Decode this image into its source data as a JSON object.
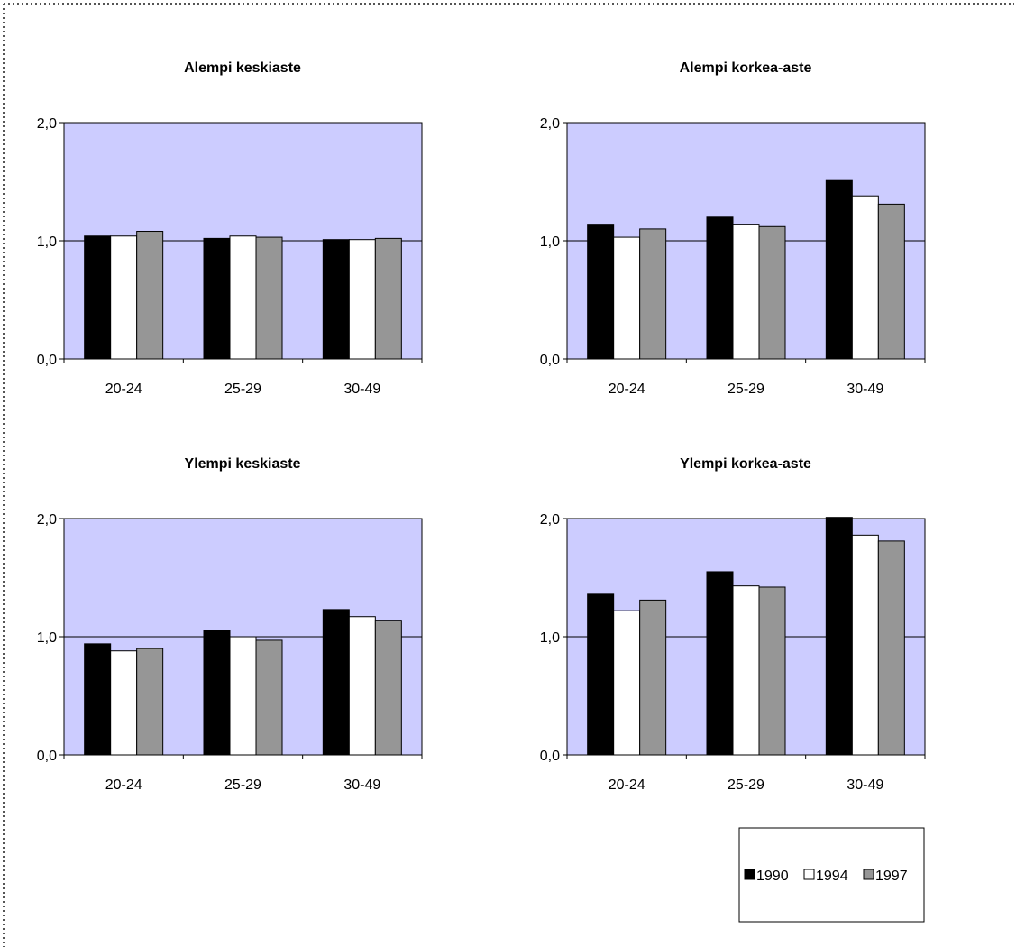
{
  "colors": {
    "plot_background": "#ccccff",
    "series_1990": "#000000",
    "series_1994": "#ffffff",
    "series_1997": "#969696",
    "border": "#000000",
    "frame_dots": "#555555"
  },
  "legend": {
    "placement": "bottom-right",
    "entries": [
      "1990",
      "1994",
      "1997"
    ]
  },
  "chart_data": [
    {
      "type": "bar",
      "title": "Alempi keskiaste",
      "xlabel": "",
      "ylabel": "",
      "categories": [
        "20-24",
        "25-29",
        "30-49"
      ],
      "ylim": [
        0,
        2
      ],
      "yticks": [
        "0,0",
        "1,0",
        "2,0"
      ],
      "reference_line": 1.0,
      "grid": false,
      "series": [
        {
          "name": "1990",
          "values": [
            1.04,
            1.02,
            1.01
          ]
        },
        {
          "name": "1994",
          "values": [
            1.04,
            1.04,
            1.01
          ]
        },
        {
          "name": "1997",
          "values": [
            1.08,
            1.03,
            1.02
          ]
        }
      ]
    },
    {
      "type": "bar",
      "title": "Alempi korkea-aste",
      "xlabel": "",
      "ylabel": "",
      "categories": [
        "20-24",
        "25-29",
        "30-49"
      ],
      "ylim": [
        0,
        2
      ],
      "yticks": [
        "0,0",
        "1,0",
        "2,0"
      ],
      "reference_line": 1.0,
      "grid": false,
      "series": [
        {
          "name": "1990",
          "values": [
            1.14,
            1.2,
            1.51
          ]
        },
        {
          "name": "1994",
          "values": [
            1.03,
            1.14,
            1.38
          ]
        },
        {
          "name": "1997",
          "values": [
            1.1,
            1.12,
            1.31
          ]
        }
      ]
    },
    {
      "type": "bar",
      "title": "Ylempi keskiaste",
      "xlabel": "",
      "ylabel": "",
      "categories": [
        "20-24",
        "25-29",
        "30-49"
      ],
      "ylim": [
        0,
        2
      ],
      "yticks": [
        "0,0",
        "1,0",
        "2,0"
      ],
      "reference_line": 1.0,
      "grid": false,
      "series": [
        {
          "name": "1990",
          "values": [
            0.94,
            1.05,
            1.23
          ]
        },
        {
          "name": "1994",
          "values": [
            0.88,
            1.0,
            1.17
          ]
        },
        {
          "name": "1997",
          "values": [
            0.9,
            0.97,
            1.14
          ]
        }
      ]
    },
    {
      "type": "bar",
      "title": "Ylempi korkea-aste",
      "xlabel": "",
      "ylabel": "",
      "categories": [
        "20-24",
        "25-29",
        "30-49"
      ],
      "ylim": [
        0,
        2
      ],
      "yticks": [
        "0,0",
        "1,0",
        "2,0"
      ],
      "reference_line": 1.0,
      "grid": false,
      "series": [
        {
          "name": "1990",
          "values": [
            1.36,
            1.55,
            2.01
          ]
        },
        {
          "name": "1994",
          "values": [
            1.22,
            1.43,
            1.86
          ]
        },
        {
          "name": "1997",
          "values": [
            1.31,
            1.42,
            1.81
          ]
        }
      ]
    }
  ]
}
